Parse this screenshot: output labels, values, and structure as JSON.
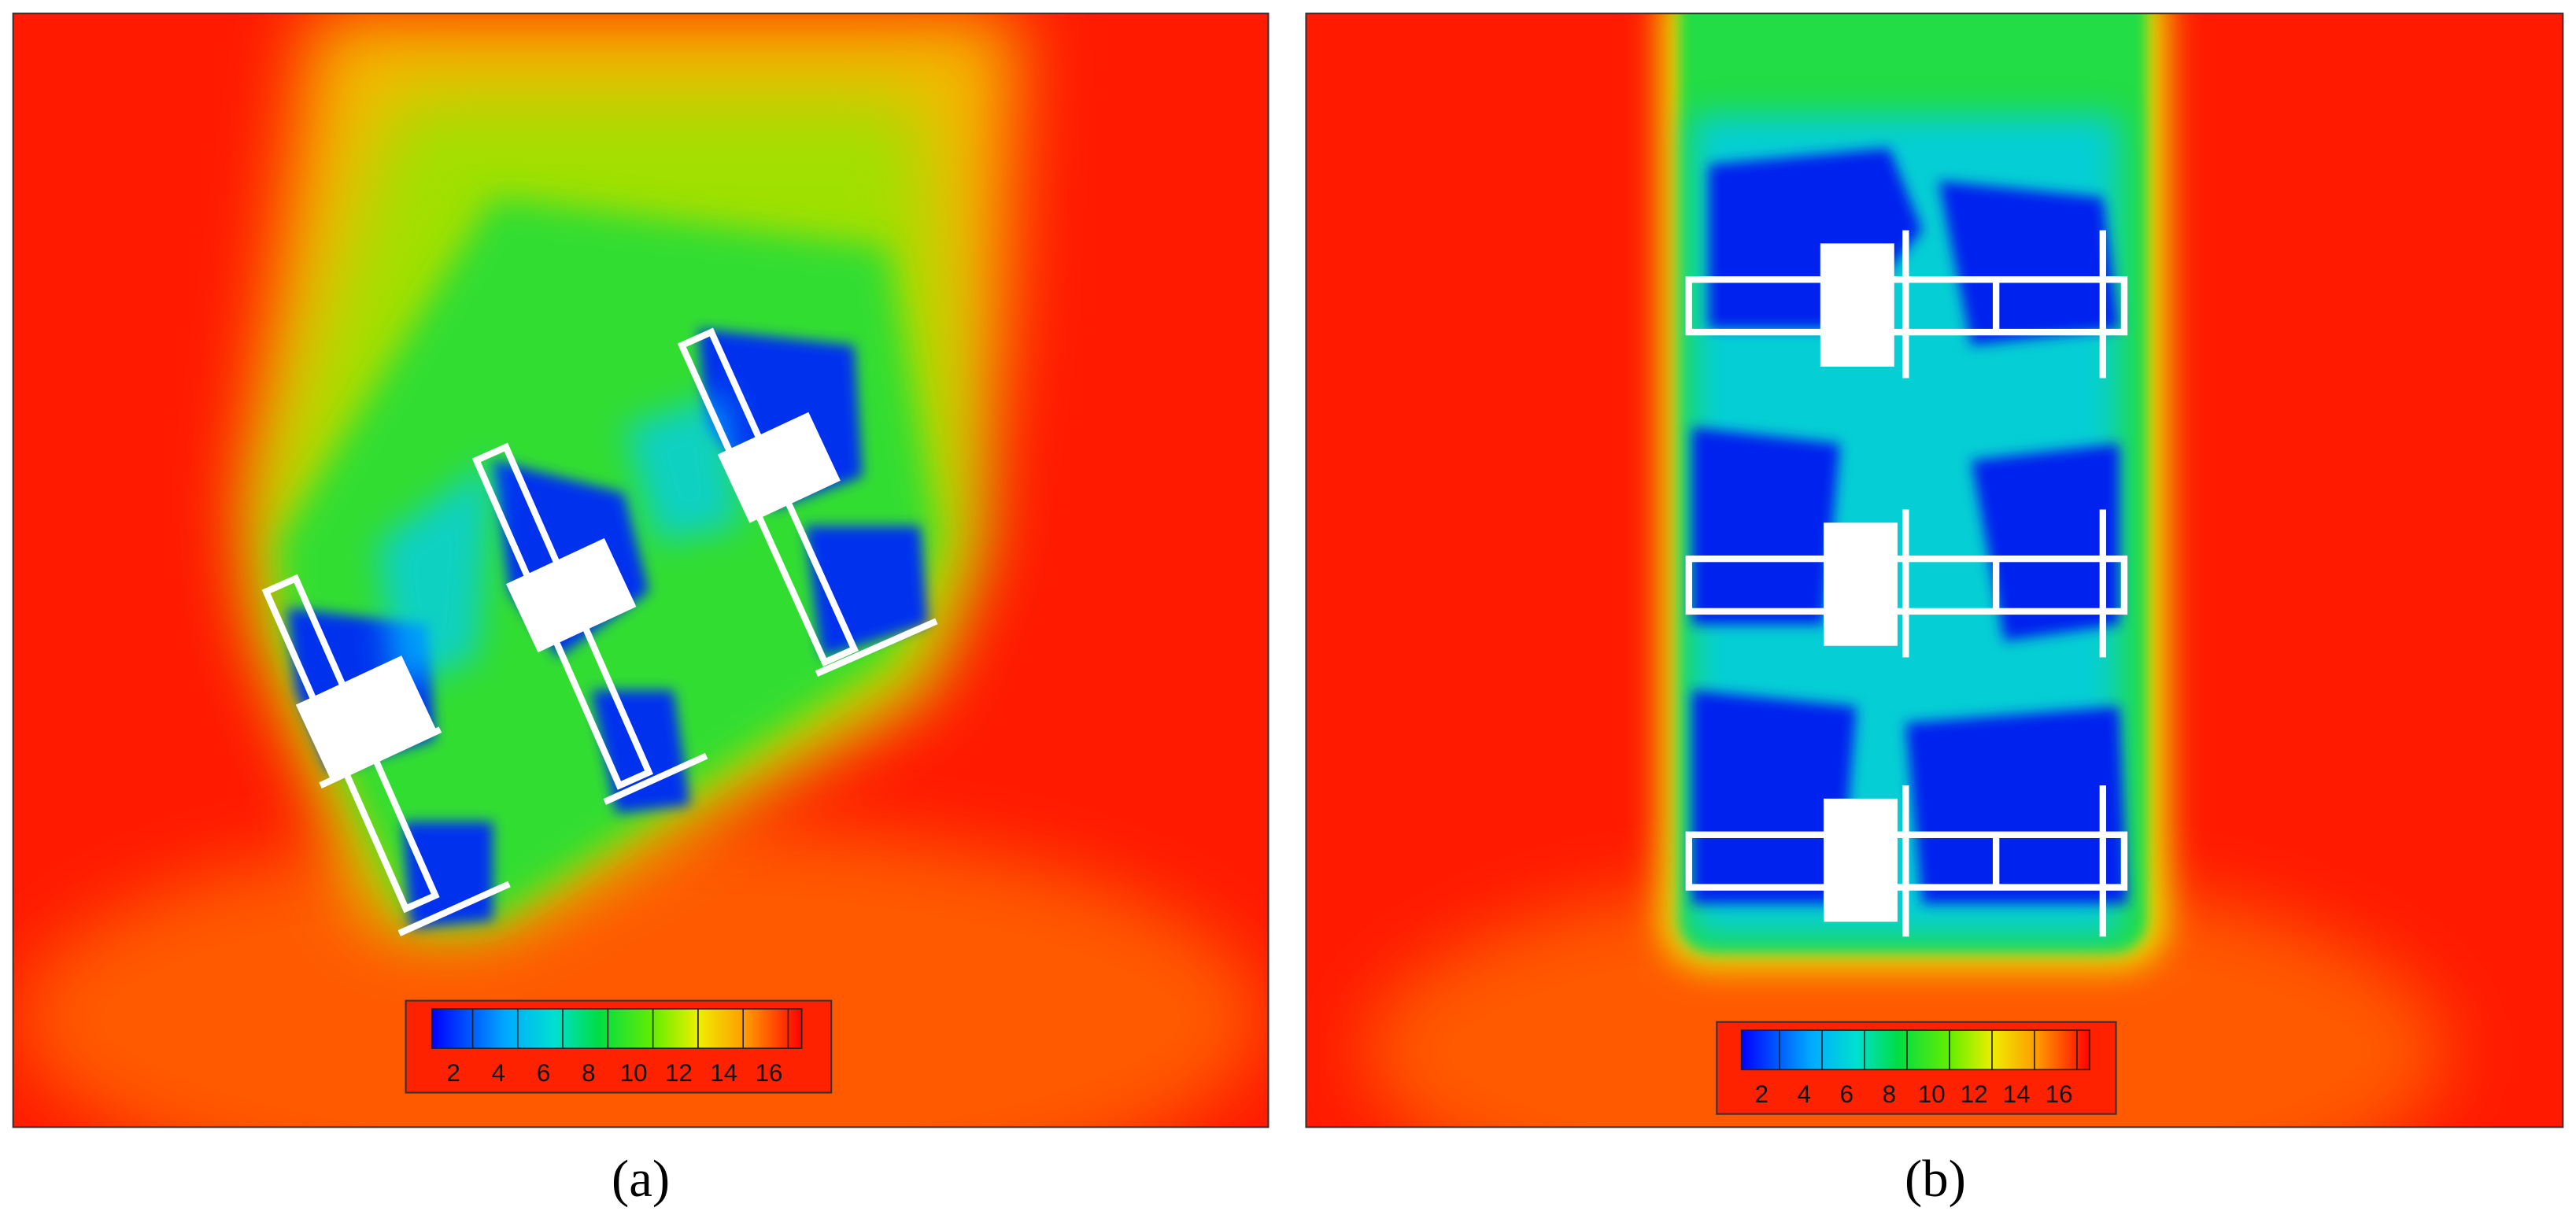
{
  "panels": [
    {
      "label": "(a)",
      "colorbar": {
        "ticks": [
          2,
          4,
          6,
          8,
          10,
          12,
          14,
          16
        ]
      }
    },
    {
      "label": "(b)",
      "colorbar": {
        "ticks": [
          2,
          4,
          6,
          8,
          10,
          12,
          14,
          16
        ]
      }
    }
  ]
}
